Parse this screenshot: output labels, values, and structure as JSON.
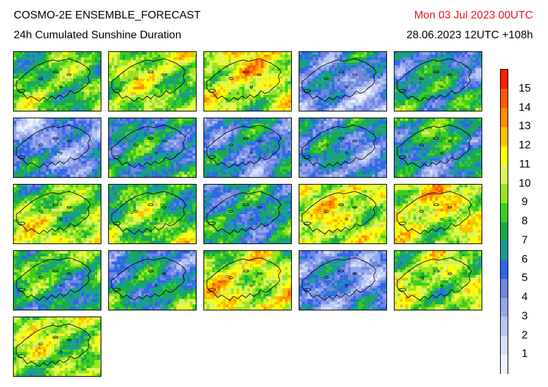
{
  "header": {
    "model_title": "COSMO-2E ENSEMBLE_FORECAST",
    "parameter": "24h Cumulated Sunshine Duration",
    "valid_time": "Mon 03 Jul 2023 00UTC",
    "init_and_leadtime": "28.06.2023 12UTC +108h"
  },
  "map_data": {
    "type": "ensemble-member-maps",
    "member_count": 21,
    "layout_columns": 5,
    "region": "Switzerland and surroundings",
    "member_mean_sunshine_hours": [
      8,
      9,
      10,
      4,
      6,
      4,
      6,
      5,
      5,
      6,
      9,
      8,
      6,
      10,
      10,
      7,
      6,
      10,
      4,
      9,
      9
    ]
  },
  "colorbar": {
    "labels": [
      "15",
      "14",
      "13",
      "12",
      "11",
      "10",
      "9",
      "8",
      "7",
      "6",
      "5",
      "4",
      "3",
      "2",
      "1"
    ],
    "colors": [
      "#f0f4ff",
      "#d6e0fa",
      "#b6c6f4",
      "#94a6ec",
      "#6f85e2",
      "#2e66e8",
      "#159e96",
      "#1aa84a",
      "#3ccf1a",
      "#9be61e",
      "#dcf55a",
      "#ffff00",
      "#ffc000",
      "#ff8c00",
      "#ff5a00",
      "#ff2000"
    ],
    "title_color": "#e6141e"
  }
}
